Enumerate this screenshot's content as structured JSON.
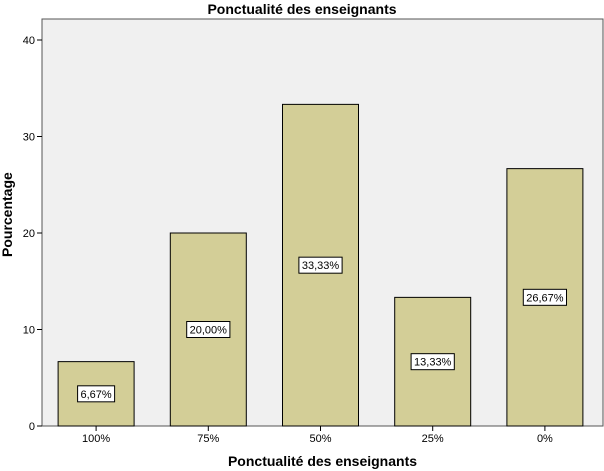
{
  "chart_data": {
    "type": "bar",
    "title": "Ponctualité des enseignants",
    "xlabel": "Ponctualité des enseignants",
    "ylabel": "Pourcentage",
    "categories": [
      "100%",
      "75%",
      "50%",
      "25%",
      "0%"
    ],
    "values": [
      6.67,
      20.0,
      33.33,
      13.33,
      26.67
    ],
    "data_labels": [
      "6,67%",
      "20,00%",
      "33,33%",
      "13,33%",
      "26,67%"
    ],
    "yticks": [
      0,
      10,
      20,
      30,
      40
    ],
    "ylim": [
      0,
      42
    ],
    "grid": false,
    "bar_color": "#d3ce97",
    "plot_background": "#f0f0f0"
  }
}
